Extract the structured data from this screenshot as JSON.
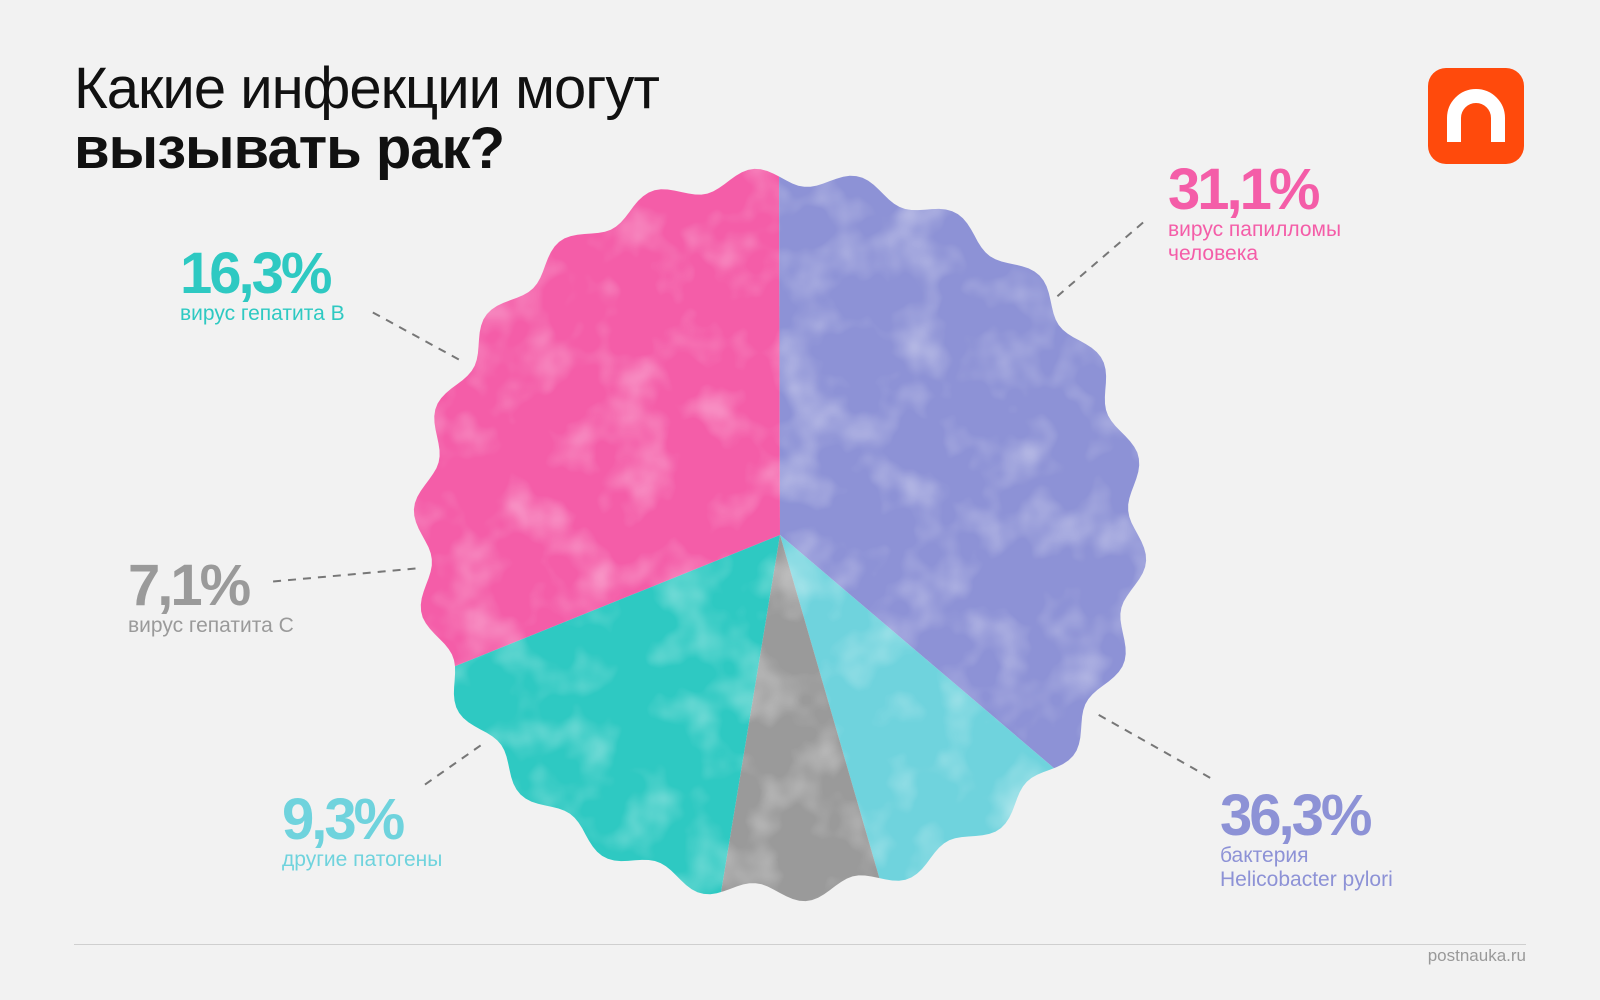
{
  "title": {
    "line1": "Какие инфекции могут",
    "line2": "вызывать рак?"
  },
  "logo": {
    "icon": "postnauka-logo-icon",
    "color": "#ff4a0c"
  },
  "source": "postnauka.ru",
  "chart_data": {
    "type": "pie",
    "title": "Какие инфекции могут вызывать рак?",
    "slices": [
      {
        "label": "вирус папилломы человека",
        "value": 31.1,
        "display": "31,1%",
        "color": "#f45da8"
      },
      {
        "label": "бактерия Helicobacter pylori",
        "value": 36.3,
        "display": "36,3%",
        "color": "#8d92d6"
      },
      {
        "label": "другие патогены",
        "value": 9.3,
        "display": "9,3%",
        "color": "#6fd3dd"
      },
      {
        "label": "вирус гепатита C",
        "value": 7.1,
        "display": "7,1%",
        "color": "#9a9a9a"
      },
      {
        "label": "вирус гепатита B",
        "value": 16.3,
        "display": "16,3%",
        "color": "#2ec9c2"
      }
    ],
    "label_lines": [
      {
        "desc_line1": "вирус папилломы",
        "desc_line2": "человека"
      },
      {
        "desc_line1": "бактерия",
        "desc_line2": "Helicobacter pylori"
      },
      {
        "desc_line1": "другие патогены",
        "desc_line2": ""
      },
      {
        "desc_line1": "вирус гепатита C",
        "desc_line2": ""
      },
      {
        "desc_line1": "вирус гепатита B",
        "desc_line2": ""
      }
    ]
  }
}
